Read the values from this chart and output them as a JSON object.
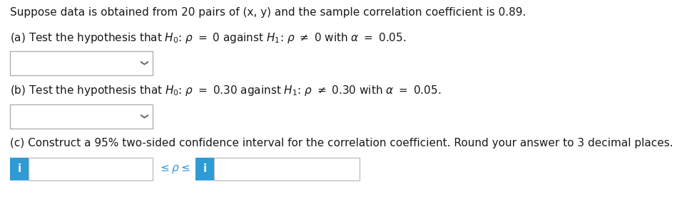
{
  "bg_color": "#ffffff",
  "text_color": "#1a1a1a",
  "blue_color": "#2E9BD6",
  "intro_text": "Suppose data is obtained from 20 pairs of (x, y) and the sample correlation coefficient is 0.89.",
  "part_a_text": "(a) Test the hypothesis that $H_0$: $\\rho$ $=$ 0 against $H_1$: $\\rho$ $\\neq$ 0 with $\\alpha$ $=$ 0.05.",
  "part_b_text": "(b) Test the hypothesis that $H_0$: $\\rho$ $=$ 0.30 against $H_1$: $\\rho$ $\\neq$ 0.30 with $\\alpha$ $=$ 0.05.",
  "part_c_text": "(c) Construct a 95% two-sided confidence interval for the correlation coefficient. Round your answer to 3 decimal places.",
  "font_size": 11.0,
  "dropdown_arrow": "∨",
  "leq_rho_leq": "$\\leq\\rho\\leq$"
}
